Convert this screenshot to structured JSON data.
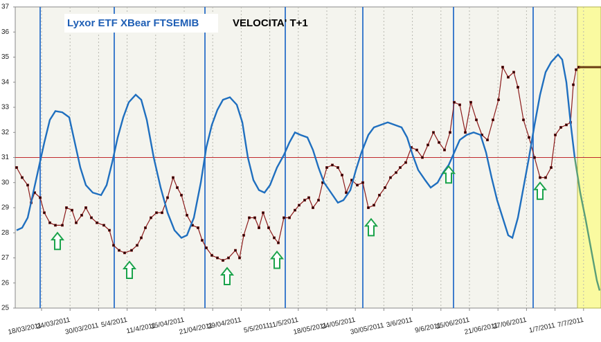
{
  "chart_data": {
    "type": "line",
    "title": "Lyxor ETF XBear FTSEMIB",
    "subtitle": "VELOCITA' T+1",
    "xlim": [
      0.5,
      212
    ],
    "ylim": [
      25,
      37
    ],
    "yticks": [
      25,
      26,
      27,
      28,
      29,
      30,
      31,
      32,
      33,
      34,
      35,
      36,
      37
    ],
    "xticks": [
      {
        "value": 10,
        "label": "18/03/2011"
      },
      {
        "value": 20.3,
        "label": "24/03/2011"
      },
      {
        "value": 30.6,
        "label": "30/03/2011"
      },
      {
        "value": 40.9,
        "label": "5/4/2011"
      },
      {
        "value": 51.2,
        "label": "11/4/2011"
      },
      {
        "value": 61.5,
        "label": "15/04/2011"
      },
      {
        "value": 71.8,
        "label": "21/04/2011"
      },
      {
        "value": 82.1,
        "label": "29/04/2011"
      },
      {
        "value": 92.4,
        "label": "5/5/2011"
      },
      {
        "value": 102.7,
        "label": "11/5/2011"
      },
      {
        "value": 113,
        "label": "18/05/2011"
      },
      {
        "value": 123.3,
        "label": "24/05/2011"
      },
      {
        "value": 133.6,
        "label": "30/05/2011"
      },
      {
        "value": 143.9,
        "label": "3/6/2011"
      },
      {
        "value": 154.2,
        "label": "9/6/2011"
      },
      {
        "value": 164.5,
        "label": "15/06/2011"
      },
      {
        "value": 174.8,
        "label": "21/06/2011"
      },
      {
        "value": 185.1,
        "label": "27/06/2011"
      },
      {
        "value": 195.4,
        "label": "1/7/2011"
      },
      {
        "value": 205.7,
        "label": "7/7/2011"
      }
    ],
    "grid": true,
    "series": [
      {
        "color": "#8b1a1a",
        "marker_color": "#1a0000",
        "x": [
          1,
          3,
          5,
          6.25,
          7.5,
          9.5,
          11,
          13,
          15,
          17.5,
          19,
          21,
          22.5,
          24.5,
          26,
          28,
          30,
          32.5,
          34.5,
          36,
          38,
          40,
          42.5,
          44.5,
          46,
          47.5,
          49.5,
          51.5,
          53.5,
          55.5,
          57.5,
          59,
          60.5,
          62.5,
          64.5,
          66.5,
          68,
          69.5,
          71.5,
          73.5,
          75.5,
          77.5,
          80,
          81.5,
          83,
          85,
          87,
          88.5,
          90,
          92,
          94,
          95.5,
          97.5,
          99.5,
          101.5,
          103,
          105,
          106.5,
          108,
          110,
          111.5,
          113,
          115,
          117,
          118.5,
          120,
          122,
          124,
          126,
          128,
          130,
          132,
          134,
          136,
          138,
          139.5,
          141.5,
          143.5,
          145.5,
          147.5,
          149.5,
          151.5,
          153.5,
          155.5,
          157.5,
          159,
          161,
          163,
          165,
          167,
          169,
          171,
          173,
          175,
          176.5,
          178.5,
          180.5,
          182,
          184,
          186,
          188,
          190,
          192,
          194,
          195.5,
          197.5,
          199.5,
          201,
          202,
          203,
          204
        ],
        "values": [
          30.6,
          30.2,
          29.9,
          29.2,
          29.6,
          29.4,
          28.8,
          28.4,
          28.3,
          28.3,
          29.0,
          28.9,
          28.4,
          28.7,
          29.0,
          28.6,
          28.4,
          28.3,
          28.1,
          27.5,
          27.3,
          27.2,
          27.3,
          27.5,
          27.8,
          28.2,
          28.6,
          28.8,
          28.8,
          29.4,
          30.2,
          29.8,
          29.5,
          28.7,
          28.3,
          28.2,
          27.7,
          27.4,
          27.1,
          27.0,
          26.9,
          27.0,
          27.3,
          27.0,
          27.9,
          28.6,
          28.6,
          28.2,
          28.8,
          28.2,
          27.8,
          27.6,
          28.6,
          28.6,
          28.9,
          29.1,
          29.3,
          29.4,
          29.0,
          29.3,
          30.0,
          30.6,
          30.7,
          30.6,
          30.3,
          29.6,
          30.1,
          29.9,
          30.0,
          29.0,
          29.1,
          29.5,
          29.8,
          30.2,
          30.4,
          30.6,
          30.8,
          31.4,
          31.3,
          31.0,
          31.5,
          32.0,
          31.6,
          31.3,
          32.0,
          33.2,
          33.1,
          32.0,
          33.2,
          32.5,
          31.9,
          31.7,
          32.5,
          33.3,
          34.6,
          34.2,
          34.4,
          33.8,
          32.5,
          31.8,
          31.0,
          30.2,
          30.2,
          30.6,
          31.9,
          32.2,
          32.3,
          32.4,
          33.9,
          34.5,
          34.6
        ]
      },
      {
        "color": "#1f6fbf",
        "x": [
          1,
          3,
          5,
          7,
          9,
          11,
          13,
          15,
          17.5,
          20,
          22,
          24,
          26,
          28.5,
          31.5,
          33.5,
          35.5,
          37.5,
          39.5,
          41.5,
          44,
          46,
          48,
          50.5,
          53,
          55.5,
          58,
          60.5,
          62.5,
          65,
          67.5,
          69.5,
          71.5,
          73.5,
          75.5,
          78,
          80.5,
          82.5,
          84.5,
          86.5,
          88.5,
          90.5,
          92.5,
          95,
          97.5,
          99.5,
          101.5,
          103.5,
          106,
          108,
          110,
          112,
          114.5,
          117,
          119,
          121.5,
          123.5,
          125.5,
          128,
          130,
          132.5,
          135,
          137.5,
          140,
          142,
          144,
          146,
          148.5,
          150.5,
          153,
          155,
          157,
          159,
          161,
          163.5,
          166,
          168.5,
          170.5,
          172.5,
          174.5,
          176.5,
          178.5,
          180,
          182,
          184,
          186,
          188,
          190,
          192,
          194,
          196.5,
          198,
          199.5,
          201,
          202.5
        ],
        "values": [
          28.1,
          28.2,
          28.6,
          29.6,
          30.6,
          31.6,
          32.5,
          32.85,
          32.8,
          32.6,
          31.6,
          30.6,
          29.9,
          29.6,
          29.5,
          29.9,
          30.8,
          31.8,
          32.6,
          33.2,
          33.5,
          33.3,
          32.5,
          31.0,
          29.8,
          28.8,
          28.1,
          27.8,
          27.9,
          28.6,
          30.0,
          31.4,
          32.3,
          32.9,
          33.3,
          33.4,
          33.1,
          32.4,
          31.0,
          30.1,
          29.7,
          29.6,
          29.9,
          30.6,
          31.1,
          31.6,
          32.0,
          31.9,
          31.8,
          31.3,
          30.6,
          30.0,
          29.6,
          29.2,
          29.3,
          29.7,
          30.5,
          31.2,
          31.9,
          32.2,
          32.3,
          32.4,
          32.3,
          32.2,
          31.8,
          31.1,
          30.5,
          30.1,
          29.8,
          30.0,
          30.4,
          30.7,
          31.2,
          31.7,
          31.9,
          32.0,
          31.9,
          31.2,
          30.2,
          29.3,
          28.6,
          27.9,
          27.8,
          28.6,
          29.8,
          31.0,
          32.3,
          33.5,
          34.4,
          34.8,
          35.1,
          34.9,
          34.0,
          32.4,
          31.0
        ]
      },
      {
        "color": "#5a9e78",
        "x": [
          202.5,
          204.5,
          206.5,
          208.5,
          210.5,
          211.5
        ],
        "values": [
          31.0,
          29.6,
          28.5,
          27.3,
          26.1,
          25.7
        ]
      }
    ],
    "hline": {
      "value": 31,
      "color": "#c0282d"
    },
    "vlines": {
      "x": [
        9.5,
        36.25,
        69,
        98,
        126,
        158.75,
        187.5
      ],
      "color": "#2a6fc9"
    },
    "forecast_span": {
      "x": [
        203.5,
        212
      ],
      "color": "#fafaa0"
    },
    "level": {
      "x": [
        204,
        212
      ],
      "value": 34.6,
      "color": "#6b3e12"
    },
    "signals": {
      "x": [
        15.75,
        41.75,
        77,
        95,
        129,
        157,
        190
      ],
      "values": [
        28.0,
        26.85,
        26.6,
        27.25,
        28.55,
        30.65,
        30.0
      ],
      "color": "#1aa34a"
    }
  }
}
